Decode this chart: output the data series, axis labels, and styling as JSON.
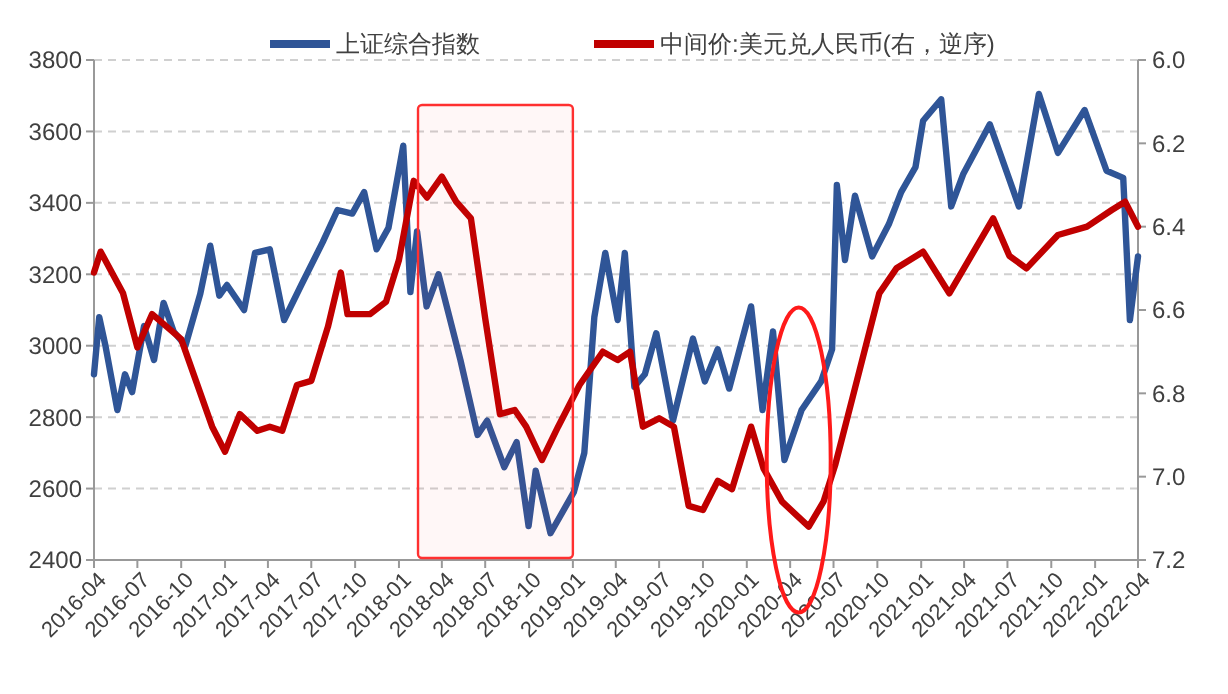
{
  "chart_data": {
    "type": "line",
    "legend": "top",
    "grid": "y",
    "line_style": "solid",
    "marker": "none",
    "ylim": [
      2400,
      3800
    ],
    "yticks": [
      2400,
      2600,
      2800,
      3000,
      3200,
      3400,
      3600,
      3800
    ],
    "y2lim": [
      7.2,
      6.0
    ],
    "y2ticks": [
      {
        "value": 7.2,
        "label": "7.2"
      },
      {
        "value": 7,
        "label": "7.0"
      },
      {
        "value": 6.8,
        "label": "6.8"
      },
      {
        "value": 6.6,
        "label": "6.6"
      },
      {
        "value": 6.4,
        "label": "6.4"
      },
      {
        "value": 6.2,
        "label": "6.2"
      },
      {
        "value": 6,
        "label": "6.0"
      }
    ],
    "xlim": [
      "2016-04-01",
      "2022-04-01"
    ],
    "bands": [
      {
        "axis": "x",
        "from": "2018-02-10",
        "to": "2019-01-01",
        "color": "#ff3030"
      }
    ],
    "xticks": [
      "2016-04",
      "2016-07",
      "2016-10",
      "2017-01",
      "2017-04",
      "2017-07",
      "2017-10",
      "2018-01",
      "2018-04",
      "2018-07",
      "2018-10",
      "2019-01",
      "2019-04",
      "2019-07",
      "2019-10",
      "2020-01",
      "2020-04",
      "2020-07",
      "2020-10",
      "2021-01",
      "2021-04",
      "2021-07",
      "2021-10",
      "2022-01",
      "2022-04"
    ],
    "series": [
      {
        "name": "上证综合指数",
        "color": "#2f5597",
        "x": [
          "2016-04-01",
          "2016-04-12",
          "2016-04-25",
          "2016-05-20",
          "2016-06-05",
          "2016-06-20",
          "2016-07-15",
          "2016-08-05",
          "2016-08-25",
          "2016-09-15",
          "2016-10-10",
          "2016-11-10",
          "2016-12-01",
          "2016-12-20",
          "2017-01-05",
          "2017-02-10",
          "2017-03-05",
          "2017-04-05",
          "2017-05-05",
          "2017-06-10",
          "2017-07-25",
          "2017-08-25",
          "2017-09-25",
          "2017-10-20",
          "2017-11-15",
          "2017-12-10",
          "2018-01-10",
          "2018-01-25",
          "2018-02-08",
          "2018-02-28",
          "2018-03-25",
          "2018-05-10",
          "2018-06-15",
          "2018-07-05",
          "2018-08-10",
          "2018-09-05",
          "2018-09-30",
          "2018-10-15",
          "2018-11-15",
          "2019-01-03",
          "2019-01-25",
          "2019-02-15",
          "2019-03-10",
          "2019-04-05",
          "2019-04-20",
          "2019-05-10",
          "2019-06-01",
          "2019-06-25",
          "2019-07-30",
          "2019-09-10",
          "2019-10-05",
          "2019-11-01",
          "2019-11-25",
          "2020-01-10",
          "2020-02-03",
          "2020-02-25",
          "2020-03-20",
          "2020-04-25",
          "2020-06-05",
          "2020-06-28",
          "2020-07-08",
          "2020-07-25",
          "2020-08-15",
          "2020-09-20",
          "2020-10-25",
          "2020-11-20",
          "2020-12-20",
          "2021-01-05",
          "2021-02-12",
          "2021-03-05",
          "2021-03-30",
          "2021-05-25",
          "2021-07-25",
          "2021-09-05",
          "2021-10-15",
          "2021-12-10",
          "2022-01-25",
          "2022-03-01",
          "2022-03-15",
          "2022-04-01"
        ],
        "values": [
          2920,
          3080,
          3000,
          2820,
          2920,
          2870,
          3055,
          2960,
          3120,
          3040,
          3000,
          3145,
          3280,
          3140,
          3170,
          3100,
          3260,
          3270,
          3072,
          3170,
          3290,
          3380,
          3370,
          3430,
          3270,
          3330,
          3560,
          3150,
          3320,
          3110,
          3200,
          2960,
          2750,
          2790,
          2660,
          2730,
          2495,
          2650,
          2475,
          2590,
          2700,
          3080,
          3260,
          3072,
          3260,
          2885,
          2920,
          3035,
          2790,
          3020,
          2900,
          2990,
          2880,
          3110,
          2820,
          3040,
          2680,
          2820,
          2900,
          2990,
          3450,
          3240,
          3420,
          3250,
          3340,
          3430,
          3500,
          3630,
          3690,
          3390,
          3480,
          3620,
          3390,
          3705,
          3540,
          3660,
          3490,
          3470,
          3072,
          3250
        ]
      },
      {
        "name": "中间价:美元兑人民币(右，逆序)",
        "color": "#c00000",
        "axis": "y2",
        "x": [
          "2016-04-01",
          "2016-04-15",
          "2016-06-01",
          "2016-07-01",
          "2016-08-01",
          "2016-10-01",
          "2016-11-01",
          "2016-12-05",
          "2017-01-01",
          "2017-02-01",
          "2017-03-10",
          "2017-04-05",
          "2017-05-01",
          "2017-06-01",
          "2017-07-01",
          "2017-08-05",
          "2017-09-01",
          "2017-09-15",
          "2017-11-01",
          "2017-12-05",
          "2018-01-01",
          "2018-02-01",
          "2018-03-01",
          "2018-04-01",
          "2018-05-01",
          "2018-06-01",
          "2018-07-01",
          "2018-08-01",
          "2018-09-01",
          "2018-09-25",
          "2018-10-28",
          "2018-12-01",
          "2019-01-15",
          "2019-03-05",
          "2019-04-05",
          "2019-05-01",
          "2019-05-28",
          "2019-07-01",
          "2019-08-01",
          "2019-09-01",
          "2019-10-01",
          "2019-11-01",
          "2019-12-01",
          "2020-01-10",
          "2020-02-05",
          "2020-03-15",
          "2020-05-10",
          "2020-06-10",
          "2020-07-05",
          "2020-08-10",
          "2020-10-05",
          "2020-11-10",
          "2021-01-05",
          "2021-03-01",
          "2021-06-01",
          "2021-07-05",
          "2021-08-10",
          "2021-10-15",
          "2021-12-15",
          "2022-02-05",
          "2022-03-05",
          "2022-04-01"
        ],
        "values": [
          6.51,
          6.46,
          6.56,
          6.69,
          6.61,
          6.67,
          6.77,
          6.88,
          6.94,
          6.85,
          6.89,
          6.88,
          6.89,
          6.78,
          6.77,
          6.64,
          6.51,
          6.61,
          6.61,
          6.58,
          6.48,
          6.29,
          6.33,
          6.28,
          6.34,
          6.38,
          6.62,
          6.85,
          6.84,
          6.88,
          6.96,
          6.88,
          6.78,
          6.7,
          6.72,
          6.7,
          6.88,
          6.86,
          6.88,
          7.07,
          7.08,
          7.01,
          7.03,
          6.88,
          6.98,
          7.06,
          7.12,
          7.06,
          6.97,
          6.81,
          6.56,
          6.5,
          6.46,
          6.56,
          6.38,
          6.47,
          6.5,
          6.42,
          6.4,
          6.36,
          6.34,
          6.4
        ]
      }
    ]
  }
}
